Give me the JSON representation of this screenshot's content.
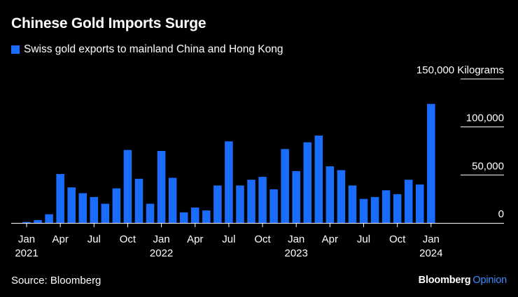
{
  "title": "Chinese Gold Imports Surge",
  "legend": {
    "label": "Swiss gold exports to mainland China and Hong Kong"
  },
  "colors": {
    "bar": "#1a6cff",
    "background": "#000000",
    "text": "#ffffff",
    "grid": "#ffffff",
    "accent": "#3f8cff"
  },
  "source": "Source: Bloomberg",
  "brand": {
    "name": "Bloomberg",
    "suffix": "Opinion"
  },
  "chart_data": {
    "type": "bar",
    "title": "Chinese Gold Imports Surge",
    "series_name": "Swiss gold exports to mainland China and Hong Kong",
    "y_unit_label": "150,000 Kilograms",
    "ylim": [
      0,
      150000
    ],
    "y_ticks": [
      {
        "value": 0,
        "label": "0"
      },
      {
        "value": 50000,
        "label": "50,000"
      },
      {
        "value": 100000,
        "label": "100,000"
      },
      {
        "value": 150000,
        "label": "150,000 Kilograms"
      }
    ],
    "categories": [
      "2021-01",
      "2021-02",
      "2021-03",
      "2021-04",
      "2021-05",
      "2021-06",
      "2021-07",
      "2021-08",
      "2021-09",
      "2021-10",
      "2021-11",
      "2021-12",
      "2022-01",
      "2022-02",
      "2022-03",
      "2022-04",
      "2022-05",
      "2022-06",
      "2022-07",
      "2022-08",
      "2022-09",
      "2022-10",
      "2022-11",
      "2022-12",
      "2023-01",
      "2023-02",
      "2023-03",
      "2023-04",
      "2023-05",
      "2023-06",
      "2023-07",
      "2023-08",
      "2023-09",
      "2023-10",
      "2023-11",
      "2023-12",
      "2024-01"
    ],
    "values": [
      1000,
      3000,
      9000,
      51000,
      37000,
      31000,
      27000,
      20000,
      36000,
      76000,
      46000,
      20000,
      75000,
      47000,
      11000,
      16000,
      13000,
      39000,
      85000,
      39000,
      45000,
      48000,
      35000,
      77000,
      54000,
      84000,
      91000,
      59000,
      55000,
      39000,
      25000,
      27000,
      34000,
      30000,
      45000,
      40000,
      124000
    ],
    "x_tick_labels": [
      {
        "index": 0,
        "month": "Jan",
        "year": "2021"
      },
      {
        "index": 3,
        "month": "Apr",
        "year": ""
      },
      {
        "index": 6,
        "month": "Jul",
        "year": ""
      },
      {
        "index": 9,
        "month": "Oct",
        "year": ""
      },
      {
        "index": 12,
        "month": "Jan",
        "year": "2022"
      },
      {
        "index": 15,
        "month": "Apr",
        "year": ""
      },
      {
        "index": 18,
        "month": "Jul",
        "year": ""
      },
      {
        "index": 21,
        "month": "Oct",
        "year": ""
      },
      {
        "index": 24,
        "month": "Jan",
        "year": "2023"
      },
      {
        "index": 27,
        "month": "Apr",
        "year": ""
      },
      {
        "index": 30,
        "month": "Jul",
        "year": ""
      },
      {
        "index": 33,
        "month": "Oct",
        "year": ""
      },
      {
        "index": 36,
        "month": "Jan",
        "year": "2024"
      }
    ],
    "grid": true,
    "legend_position": "top-left"
  }
}
